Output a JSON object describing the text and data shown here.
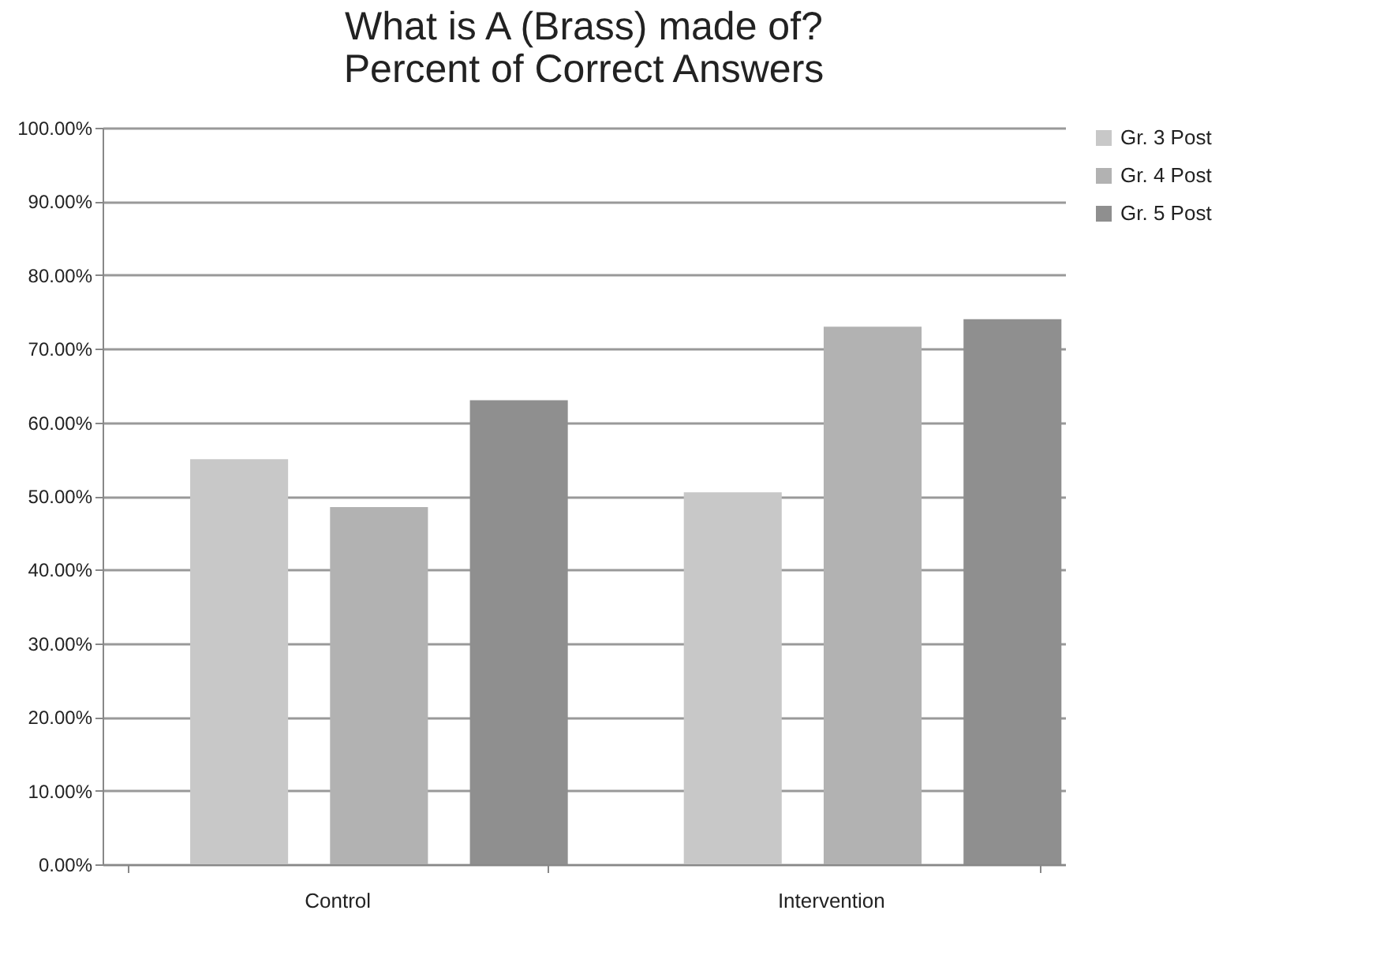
{
  "chart_data": {
    "type": "bar",
    "title": [
      "What is A (Brass) made of?",
      "Percent of Correct Answers"
    ],
    "categories": [
      "Control",
      "Intervention"
    ],
    "series": [
      {
        "name": "Gr. 3 Post",
        "color": "#c8c8c8",
        "values": [
          55,
          50.5
        ]
      },
      {
        "name": "Gr. 4 Post",
        "color": "#b2b2b2",
        "values": [
          48.5,
          73
        ]
      },
      {
        "name": "Gr. 5 Post",
        "color": "#8f8f8f",
        "values": [
          63,
          74
        ]
      }
    ],
    "ylim": [
      0,
      100
    ],
    "yticks": [
      {
        "value": 0,
        "label": "0.00%"
      },
      {
        "value": 10,
        "label": "10.00%"
      },
      {
        "value": 20,
        "label": "20.00%"
      },
      {
        "value": 30,
        "label": "30.00%"
      },
      {
        "value": 40,
        "label": "40.00%"
      },
      {
        "value": 50,
        "label": "50.00%"
      },
      {
        "value": 60,
        "label": "60.00%"
      },
      {
        "value": 70,
        "label": "70.00%"
      },
      {
        "value": 80,
        "label": "80.00%"
      },
      {
        "value": 90,
        "label": "90.00%"
      },
      {
        "value": 100,
        "label": "100.00%"
      }
    ],
    "grid": "y",
    "legend": "right"
  }
}
